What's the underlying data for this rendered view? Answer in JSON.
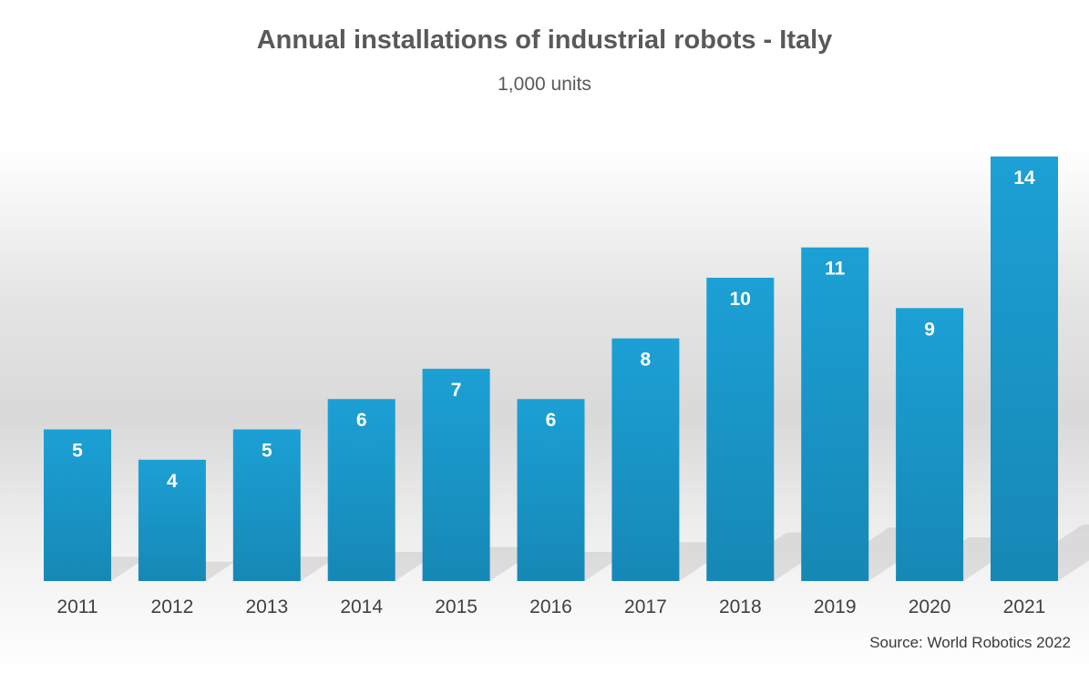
{
  "chart_data": {
    "type": "bar",
    "title": "Annual installations of industrial robots - Italy",
    "subtitle": "1,000 units",
    "source": "Source: World Robotics 2022",
    "categories": [
      "2011",
      "2012",
      "2013",
      "2014",
      "2015",
      "2016",
      "2017",
      "2018",
      "2019",
      "2020",
      "2021"
    ],
    "values": [
      5,
      4,
      5,
      6,
      7,
      6,
      8,
      10,
      11,
      9,
      14
    ],
    "data_labels": [
      "5",
      "4",
      "5",
      "6",
      "7",
      "6",
      "8",
      "10",
      "11",
      "9",
      "14"
    ],
    "xlabel": "",
    "ylabel": "",
    "ylim": [
      0,
      15
    ],
    "grid": false,
    "legend": "none",
    "colors": {
      "bar_top": "#1ca0d5",
      "bar_bottom": "#1688b5",
      "text": "#595959"
    }
  }
}
